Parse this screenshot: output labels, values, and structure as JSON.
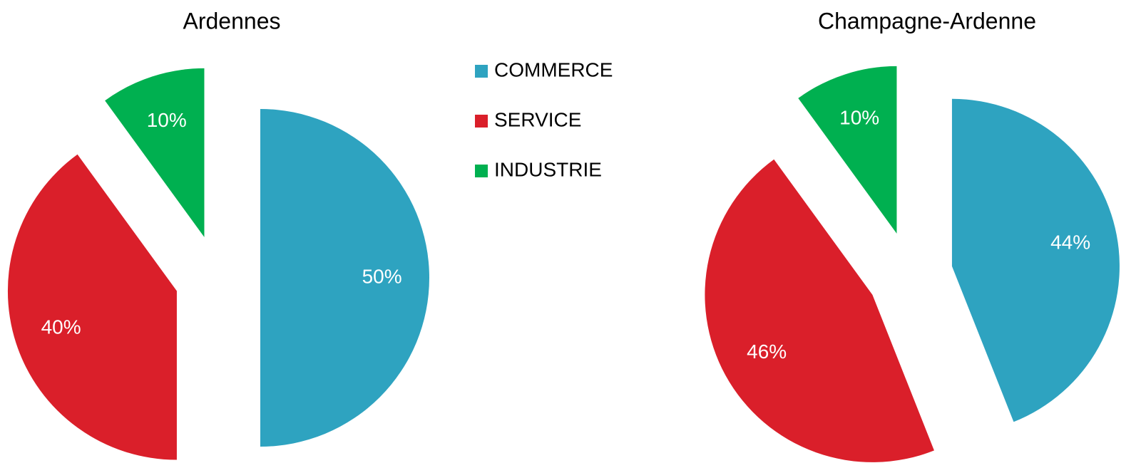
{
  "chart_data": [
    {
      "type": "pie",
      "title": "Ardennes",
      "categories": [
        "COMMERCE",
        "SERVICE",
        "INDUSTRIE"
      ],
      "values": [
        50,
        40,
        10
      ],
      "value_labels": [
        "50%",
        "40%",
        "10%"
      ],
      "colors": [
        "#2ea3c0",
        "#da1f2a",
        "#00b050"
      ]
    },
    {
      "type": "pie",
      "title": "Champagne-Ardenne",
      "categories": [
        "COMMERCE",
        "SERVICE",
        "INDUSTRIE"
      ],
      "values": [
        44,
        46,
        10
      ],
      "value_labels": [
        "44%",
        "46%",
        "10%"
      ],
      "colors": [
        "#2ea3c0",
        "#da1f2a",
        "#00b050"
      ]
    }
  ]
}
